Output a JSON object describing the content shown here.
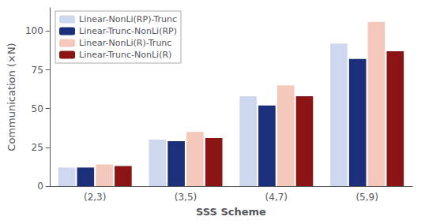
{
  "chart_data": {
    "type": "bar",
    "categories": [
      "(2,3)",
      "(3,5)",
      "(4,7)",
      "(5,9)"
    ],
    "series": [
      {
        "name": "Linear-NonLi(RP)-Trunc",
        "color": "#cdd8ee",
        "values": [
          12,
          30,
          58,
          92
        ]
      },
      {
        "name": "Linear-Trunc-NonLi(RP)",
        "color": "#1c2f7a",
        "values": [
          12,
          29,
          52,
          82
        ]
      },
      {
        "name": "Linear-NonLi(R)-Trunc",
        "color": "#f5c8bc",
        "values": [
          14,
          35,
          65,
          106
        ]
      },
      {
        "name": "Linear-Trunc-NonLi(R)",
        "color": "#8b1515",
        "values": [
          13,
          31,
          58,
          87
        ]
      }
    ],
    "xlabel": "SSS Scheme",
    "ylabel": "Communication (×N)",
    "ylim": [
      0,
      115
    ],
    "yticks": [
      0,
      25,
      50,
      75,
      100
    ],
    "grid": false,
    "legend": "upper left"
  }
}
